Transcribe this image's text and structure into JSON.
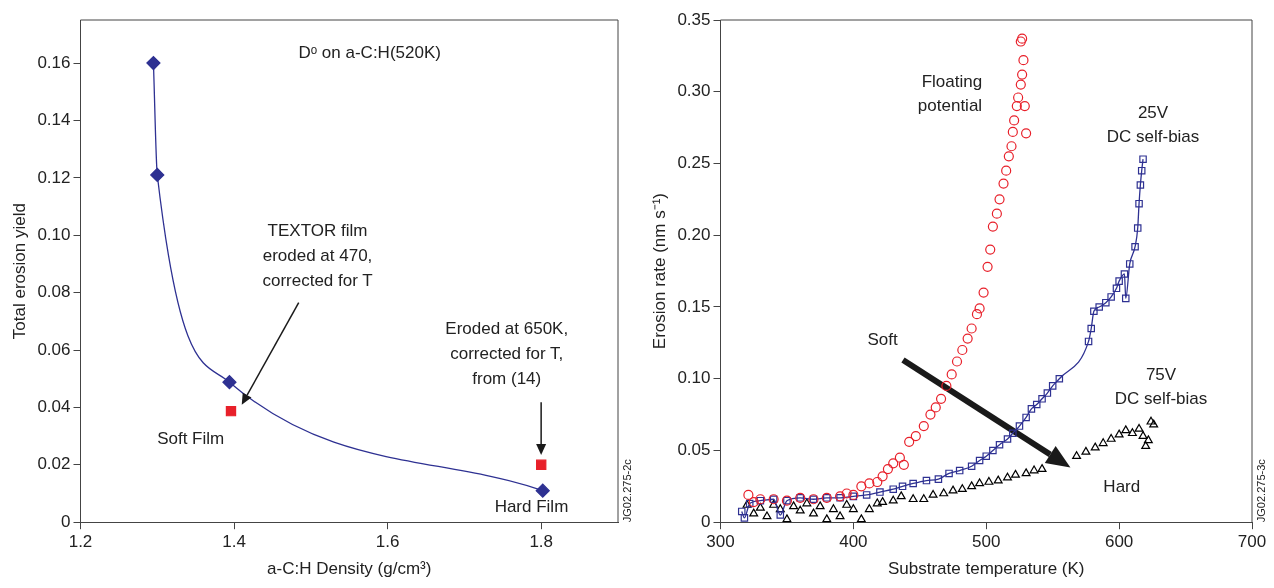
{
  "chart_data": [
    {
      "type": "scatter",
      "xlabel": "a-C:H Density (g/cm³)",
      "ylabel": "Total erosion yield",
      "xlim": [
        1.2,
        1.9
      ],
      "xticks": [
        1.2,
        1.4,
        1.6,
        1.8
      ],
      "ylim": [
        0,
        0.175
      ],
      "yticks": [
        0,
        0.02,
        0.04,
        0.06,
        0.08,
        {
          "value": 0.1,
          "label": "0.10"
        },
        0.12,
        0.14,
        0.16
      ],
      "grid": false,
      "legend": false,
      "series": [
        {
          "type": "line",
          "marker": "diamond",
          "color": "#2e3192",
          "x": [
            1.295,
            1.3,
            1.394,
            1.802
          ],
          "values": [
            0.16,
            0.121,
            0.0488,
            0.011
          ]
        },
        {
          "marker": "square",
          "color": "#e8202a",
          "x": [
            1.396,
            1.8
          ],
          "values": [
            0.0387,
            0.02
          ]
        }
      ],
      "annotations": [
        "Dᵒ on a-C:H(520K)",
        "TEXTOR film eroded at 470, corrected for T",
        "Eroded at 650K, corrected for T, from (14)",
        "Soft Film",
        "Hard Film",
        "JG02.275-2c"
      ]
    },
    {
      "type": "scatter",
      "xlabel": "Substrate temperature (K)",
      "ylabel": "Erosion rate (nm s⁻¹)",
      "xlim": [
        300,
        700
      ],
      "xticks": [
        300,
        400,
        500,
        600,
        700
      ],
      "ylim": [
        0,
        0.35
      ],
      "yticks": [
        0,
        0.05,
        {
          "value": 0.1,
          "label": "0.10"
        },
        0.15,
        {
          "value": 0.2,
          "label": "0.20"
        },
        0.25,
        {
          "value": 0.3,
          "label": "0.30"
        },
        0.35
      ],
      "grid": false,
      "legend": false,
      "series": [
        {
          "name": "Floating potential",
          "marker": "circle",
          "color": "#e8202a",
          "x": [
            321,
            325,
            330,
            340,
            350,
            360,
            370,
            380,
            390,
            395,
            400,
            406,
            412,
            418,
            422,
            426,
            430,
            435,
            438,
            442,
            447,
            453,
            458,
            462,
            466,
            470,
            474,
            478,
            482,
            486,
            489,
            493,
            495,
            498,
            501,
            503,
            505,
            508,
            510,
            513,
            515,
            517,
            519,
            520,
            521,
            523,
            524,
            526,
            527,
            528,
            526,
            527,
            530,
            529
          ],
          "values": [
            0.019,
            0.014,
            0.016,
            0.016,
            0.015,
            0.017,
            0.016,
            0.017,
            0.018,
            0.02,
            0.019,
            0.025,
            0.027,
            0.028,
            0.032,
            0.037,
            0.041,
            0.045,
            0.04,
            0.056,
            0.06,
            0.067,
            0.075,
            0.08,
            0.086,
            0.095,
            0.103,
            0.112,
            0.12,
            0.128,
            0.135,
            0.145,
            0.149,
            0.16,
            0.178,
            0.19,
            0.206,
            0.215,
            0.225,
            0.236,
            0.245,
            0.255,
            0.262,
            0.272,
            0.28,
            0.29,
            0.296,
            0.305,
            0.312,
            0.322,
            0.335,
            0.337,
            0.271,
            0.29
          ]
        },
        {
          "name": "25V DC self-bias",
          "type": "line",
          "marker": "square",
          "color": "#2e3192",
          "x": [
            316,
            318,
            322,
            330,
            340,
            345,
            350,
            360,
            370,
            380,
            390,
            400,
            410,
            420,
            430,
            437,
            445,
            455,
            464,
            472,
            480,
            489,
            495,
            500,
            505,
            510,
            516,
            520,
            525,
            530,
            534,
            538,
            542,
            546,
            550,
            555,
            577,
            579,
            581,
            585,
            590,
            594,
            598,
            600,
            604,
            605,
            608,
            612,
            614,
            615,
            616,
            617,
            618
          ],
          "values": [
            0.0075,
            0.003,
            0.013,
            0.015,
            0.016,
            0.005,
            0.015,
            0.017,
            0.016,
            0.017,
            0.017,
            0.018,
            0.019,
            0.021,
            0.023,
            0.025,
            0.027,
            0.029,
            0.03,
            0.034,
            0.036,
            0.039,
            0.043,
            0.046,
            0.05,
            0.054,
            0.058,
            0.062,
            0.067,
            0.073,
            0.079,
            0.082,
            0.086,
            0.09,
            0.095,
            0.1,
            0.126,
            0.135,
            0.147,
            0.15,
            0.153,
            0.157,
            0.163,
            0.168,
            0.173,
            0.156,
            0.18,
            0.192,
            0.205,
            0.222,
            0.235,
            0.245,
            0.253
          ]
        },
        {
          "name": "75V DC self-bias",
          "marker": "triangle",
          "color": "#000000",
          "x": [
            320,
            325,
            330,
            335,
            340,
            345,
            350,
            355,
            360,
            365,
            370,
            375,
            380,
            385,
            390,
            395,
            400,
            406,
            412,
            418,
            422,
            430,
            436,
            445,
            453,
            460,
            468,
            475,
            482,
            489,
            495,
            502,
            509,
            516,
            522,
            530,
            536,
            542,
            550,
            556,
            562,
            568,
            575,
            582,
            588,
            594,
            600,
            605,
            610,
            615,
            618,
            620,
            622,
            624,
            626
          ],
          "values": [
            0.012,
            0.006,
            0.01,
            0.004,
            0.012,
            0.009,
            0.002,
            0.011,
            0.008,
            0.013,
            0.006,
            0.011,
            0.002,
            0.009,
            0.004,
            0.012,
            0.009,
            0.002,
            0.009,
            0.013,
            0.014,
            0.015,
            0.018,
            0.016,
            0.016,
            0.019,
            0.02,
            0.022,
            0.023,
            0.025,
            0.027,
            0.028,
            0.029,
            0.031,
            0.033,
            0.034,
            0.036,
            0.037,
            null,
            null,
            null,
            0.046,
            0.049,
            0.052,
            0.055,
            0.058,
            0.061,
            0.064,
            0.062,
            0.065,
            0.06,
            0.053,
            0.057,
            0.07,
            0.068
          ]
        }
      ],
      "annotations": [
        "Soft",
        "Hard",
        "JG02.275-3c"
      ]
    }
  ]
}
